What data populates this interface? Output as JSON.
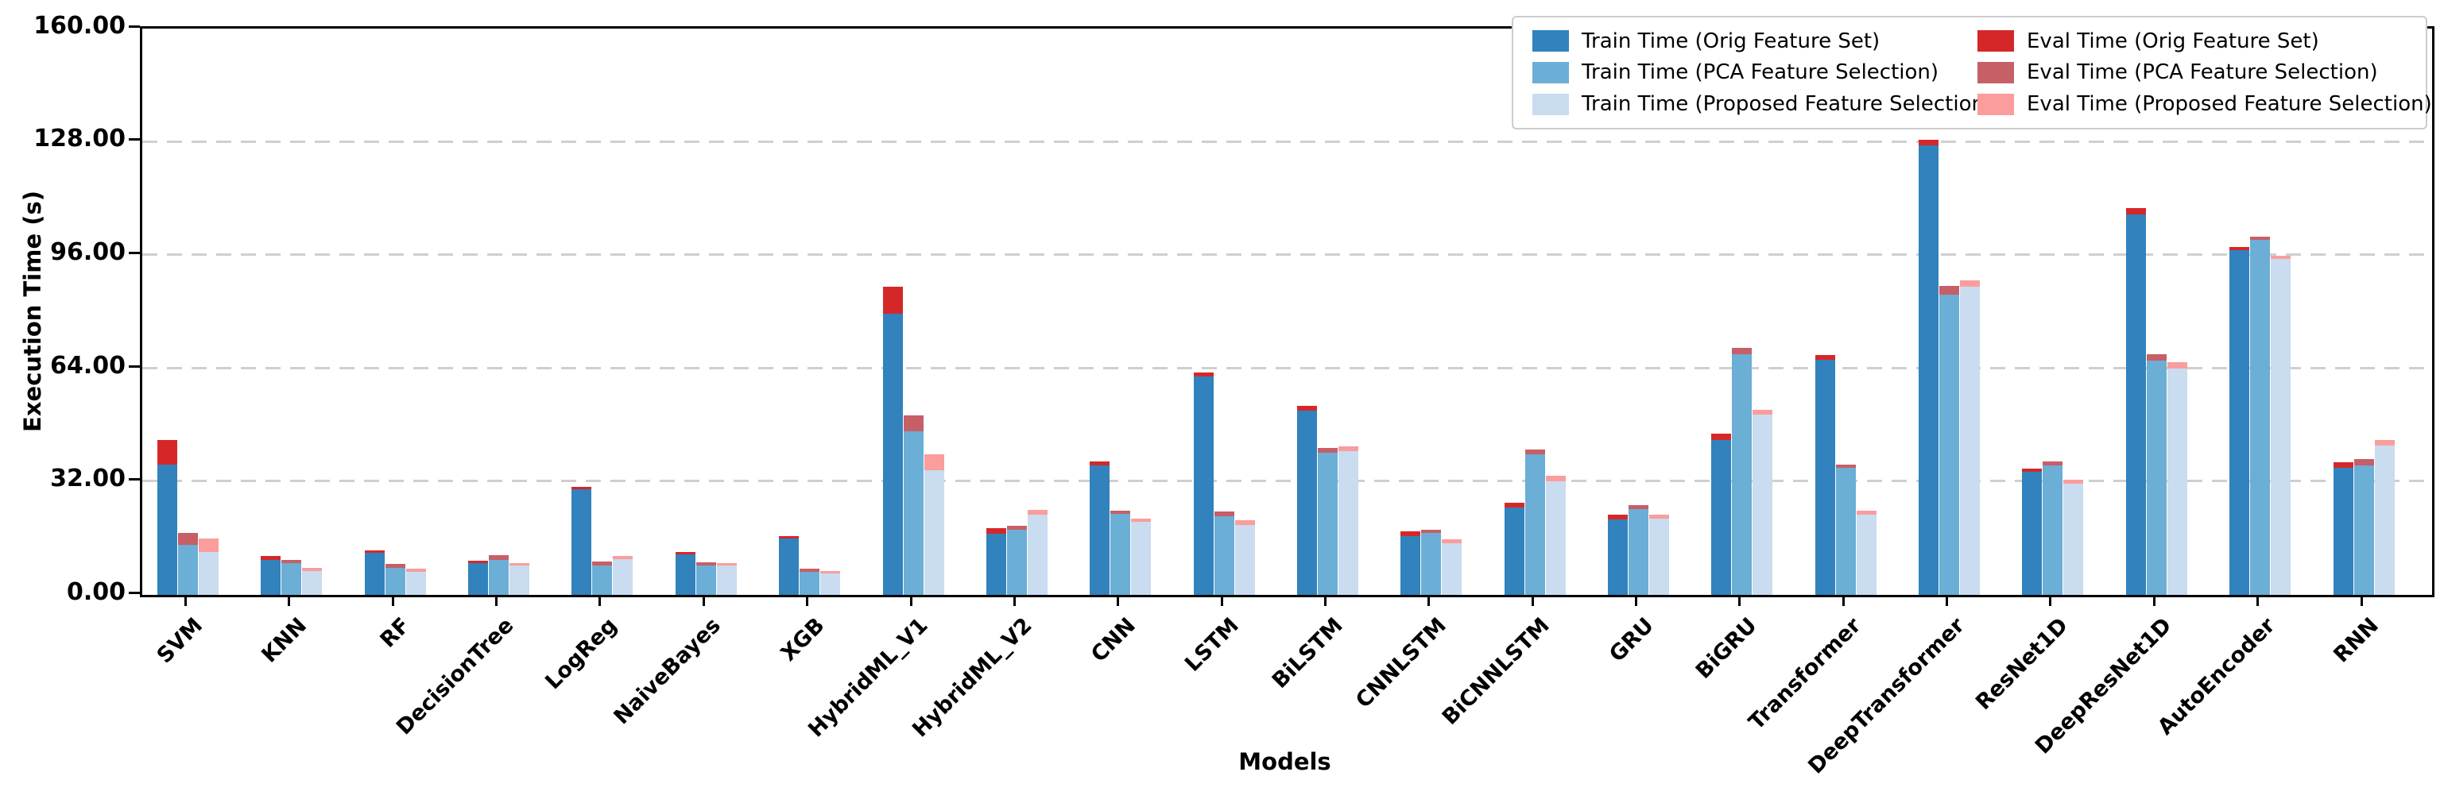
{
  "chart_data": {
    "type": "bar",
    "title": "",
    "xlabel": "Models",
    "ylabel": "Execution Time (s)",
    "ylim": [
      0,
      160
    ],
    "yticks": [
      "160.00",
      "128.00",
      "96.00",
      "64.00",
      "32.00",
      "0.00"
    ],
    "grid": "horizontal dashed gridlines at 32,64,96,128",
    "legend_position": "upper right, 2 columns",
    "bar_style": "grouped, 3 bars per model, eval time stacked on top of train time",
    "categories": [
      "SVM",
      "KNN",
      "RF",
      "DecisionTree",
      "LogReg",
      "NaiveBayes",
      "XGB",
      "HybridML_V1",
      "HybridML_V2",
      "CNN",
      "LSTM",
      "BiLSTM",
      "CNNLSTM",
      "BiCNNLSTM",
      "GRU",
      "BiGRU",
      "Transformer",
      "DeepTransformer",
      "ResNet1D",
      "DeepResNet1D",
      "AutoEncoder",
      "RNN"
    ],
    "series": [
      {
        "name": "Train Time (Orig Feature Set)",
        "color": "#3182bd",
        "values": [
          36.8,
          9.9,
          11.8,
          9.0,
          29.8,
          11.4,
          16.0,
          79.4,
          17.2,
          36.6,
          61.7,
          52.0,
          16.7,
          24.8,
          21.3,
          43.7,
          66.4,
          127.0,
          34.8,
          107.4,
          97.3,
          35.9
        ]
      },
      {
        "name": "Train Time (PCA Feature Selection)",
        "color": "#6baed6",
        "values": [
          14.1,
          9.0,
          7.7,
          9.9,
          8.4,
          8.4,
          6.4,
          46.3,
          18.3,
          22.9,
          22.2,
          40.2,
          17.4,
          39.7,
          24.3,
          68.0,
          35.9,
          84.9,
          36.6,
          66.1,
          100.3,
          36.6
        ]
      },
      {
        "name": "Train Time (Proposed Feature Selection)",
        "color": "#c9dcf0",
        "values": [
          12.2,
          6.8,
          6.6,
          8.2,
          10.1,
          8.4,
          6.1,
          35.2,
          22.6,
          20.7,
          19.7,
          40.6,
          14.7,
          32.1,
          21.5,
          51.0,
          22.7,
          87.0,
          31.5,
          64.0,
          95.0,
          42.2
        ]
      },
      {
        "name": "Eval Time (Orig Feature Set)",
        "color": "#d62728",
        "values": [
          7.0,
          1.0,
          0.5,
          0.5,
          0.6,
          0.5,
          0.5,
          7.6,
          1.7,
          1.0,
          1.1,
          1.5,
          1.2,
          1.3,
          1.4,
          1.8,
          1.3,
          1.6,
          0.8,
          2.0,
          1.0,
          1.5
        ]
      },
      {
        "name": "Eval Time (PCA Feature Selection)",
        "color": "#c65f66",
        "values": [
          3.5,
          0.9,
          1.1,
          1.3,
          1.1,
          0.9,
          1.0,
          4.4,
          1.3,
          0.9,
          1.3,
          1.3,
          1.0,
          1.3,
          1.1,
          1.7,
          1.0,
          2.3,
          1.1,
          2.0,
          0.9,
          1.7
        ]
      },
      {
        "name": "Eval Time (Proposed Feature Selection)",
        "color": "#fb9d9c",
        "values": [
          3.7,
          0.9,
          0.8,
          0.7,
          0.8,
          0.5,
          0.7,
          4.6,
          1.5,
          0.9,
          1.4,
          1.3,
          1.1,
          1.5,
          1.1,
          1.3,
          1.1,
          1.9,
          1.0,
          1.8,
          0.8,
          1.5
        ]
      }
    ]
  }
}
